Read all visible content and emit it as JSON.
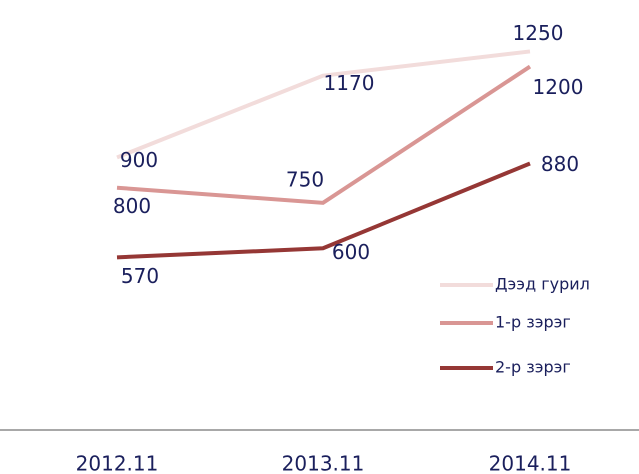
{
  "chart_data": {
    "type": "line",
    "categories": [
      "2012.11",
      "2013.11",
      "2014.11"
    ],
    "series": [
      {
        "name": "Дээд гурил",
        "color": "#f2dcdb",
        "values": [
          900,
          1170,
          1250
        ]
      },
      {
        "name": "1-р зэрэг",
        "color": "#d99694",
        "values": [
          800,
          750,
          1200
        ]
      },
      {
        "name": "2-р зэрэг",
        "color": "#953735",
        "values": [
          570,
          600,
          880
        ]
      }
    ],
    "ylim": [
      0,
      1400
    ],
    "legend": "right",
    "data_labels": true
  }
}
